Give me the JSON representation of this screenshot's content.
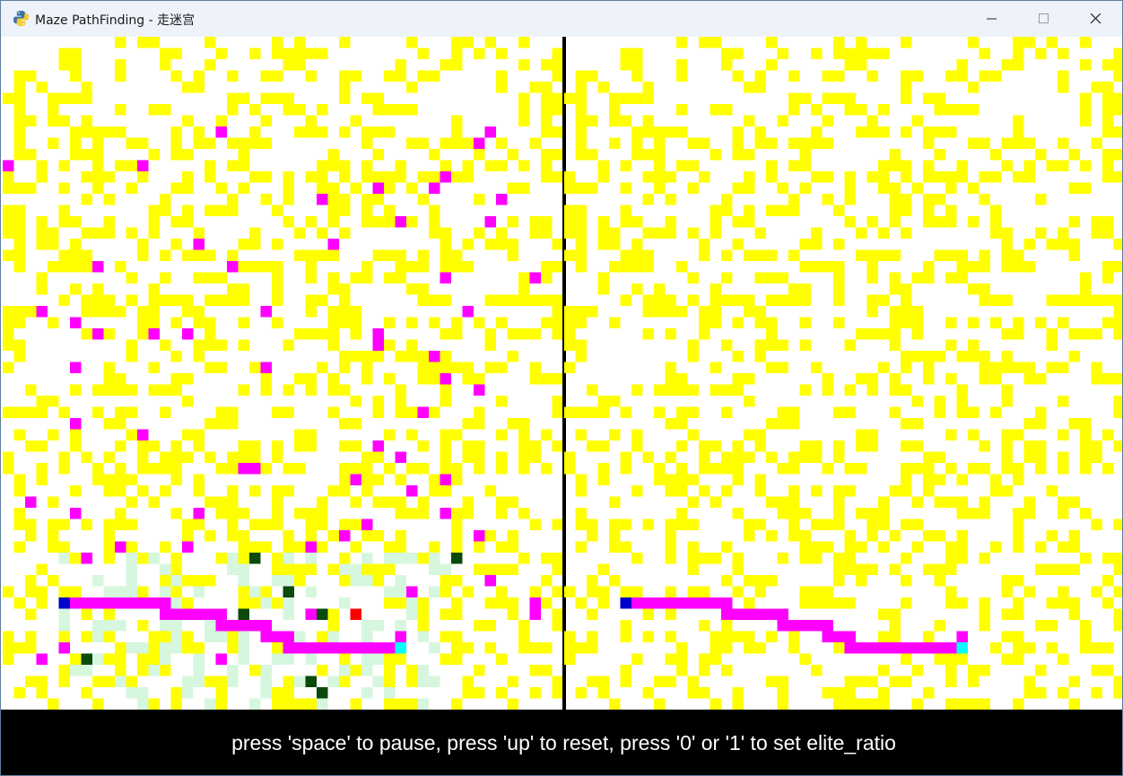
{
  "window": {
    "title": "Maze PathFinding - 走迷宫",
    "icon": "python-icon",
    "controls": [
      "minimize",
      "maximize",
      "close"
    ]
  },
  "mazes": {
    "rows": 60,
    "cols": 50,
    "colors": {
      "empty": "#ffffff",
      "wall": "#ffff00",
      "explored": "#ff00ff",
      "path": "#ff00ff",
      "start": "#0000cc",
      "goal": "#00ffff",
      "current": "#ff0000",
      "trail_dark": "#0b4a0b",
      "trail_light": "#d6f7dd"
    },
    "left": {
      "start": [
        50,
        5
      ],
      "goal": [
        54,
        35
      ]
    },
    "right": {
      "start": [
        50,
        5
      ],
      "goal": [
        54,
        35
      ]
    }
  },
  "footer": {
    "instructions": "press 'space' to pause, press 'up' to reset, press '0' or '1' to set elite_ratio"
  }
}
